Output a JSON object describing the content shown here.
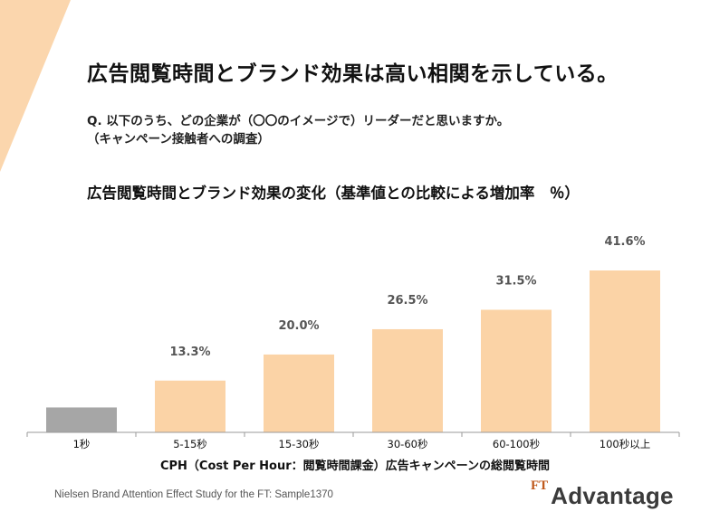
{
  "headline": "広告閲覧時間とブランド効果は高い相関を示している。",
  "question": {
    "line1": "Q. 以下のうち、どの企業が（〇〇のイメージで）リーダーだと思いますか。",
    "line2": "（キャンペーン接触者への調査）"
  },
  "chart_data": {
    "type": "bar",
    "title": "広告閲覧時間とブランド効果の変化（基準値との比較による増加率　％）",
    "xlabel": "CPH（Cost Per Hour：閲覧時間課金）広告キャンペーンの総閲覧時間",
    "ylabel": "",
    "categories": [
      "1秒",
      "5-15秒",
      "15-30秒",
      "30-60秒",
      "60-100秒",
      "100秒以上"
    ],
    "values": [
      6.4,
      13.3,
      20.0,
      26.5,
      31.5,
      41.6
    ],
    "value_labels": [
      "",
      "13.3%",
      "20.0%",
      "26.5%",
      "31.5%",
      "41.6%"
    ],
    "bar_colors": [
      "#a6a6a6",
      "#fbd3a6",
      "#fbd3a6",
      "#fbd3a6",
      "#fbd3a6",
      "#fbd3a6"
    ],
    "ylim": [
      0,
      41.6
    ],
    "grid": false
  },
  "footer": {
    "source": "Nielsen Brand Attention Effect Study for the FT: Sample1370",
    "logo_ft": "FT",
    "logo_name": "Advantage"
  },
  "colors": {
    "accent": "#f8c28b",
    "corner": "#fbd6ad",
    "baseline_bar": "#a6a6a6",
    "logo_accent": "#c05a1d"
  }
}
